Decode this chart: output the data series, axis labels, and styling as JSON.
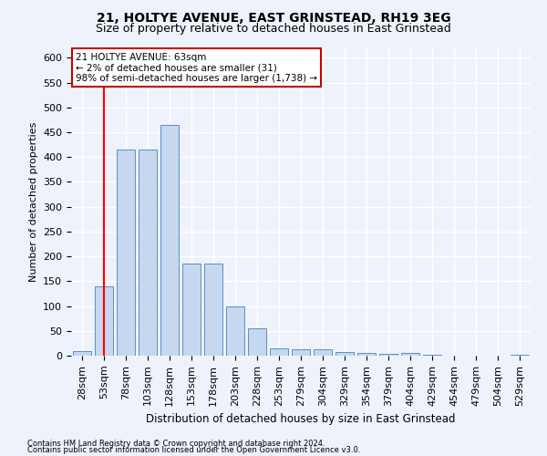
{
  "title1": "21, HOLTYE AVENUE, EAST GRINSTEAD, RH19 3EG",
  "title2": "Size of property relative to detached houses in East Grinstead",
  "xlabel": "Distribution of detached houses by size in East Grinstead",
  "ylabel": "Number of detached properties",
  "categories": [
    "28sqm",
    "53sqm",
    "78sqm",
    "103sqm",
    "128sqm",
    "153sqm",
    "178sqm",
    "203sqm",
    "228sqm",
    "253sqm",
    "279sqm",
    "304sqm",
    "329sqm",
    "354sqm",
    "379sqm",
    "404sqm",
    "429sqm",
    "454sqm",
    "479sqm",
    "504sqm",
    "529sqm"
  ],
  "values": [
    10,
    140,
    415,
    415,
    465,
    185,
    185,
    100,
    55,
    15,
    12,
    12,
    8,
    5,
    3,
    5,
    1,
    0,
    0,
    0,
    2
  ],
  "bar_color": "#c5d8f0",
  "bar_edge_color": "#5b8ec4",
  "bar_width": 0.85,
  "ylim": [
    0,
    620
  ],
  "yticks": [
    0,
    50,
    100,
    150,
    200,
    250,
    300,
    350,
    400,
    450,
    500,
    550,
    600
  ],
  "red_line_x": 1.0,
  "annotation_title": "21 HOLTYE AVENUE: 63sqm",
  "annotation_line1": "← 2% of detached houses are smaller (31)",
  "annotation_line2": "98% of semi-detached houses are larger (1,738) →",
  "annotation_box_color": "#ffffff",
  "annotation_box_edge_color": "#cc0000",
  "footer1": "Contains HM Land Registry data © Crown copyright and database right 2024.",
  "footer2": "Contains public sector information licensed under the Open Government Licence v3.0.",
  "bg_color": "#eef2fb",
  "grid_color": "#ffffff",
  "title1_fontsize": 10,
  "title2_fontsize": 9
}
